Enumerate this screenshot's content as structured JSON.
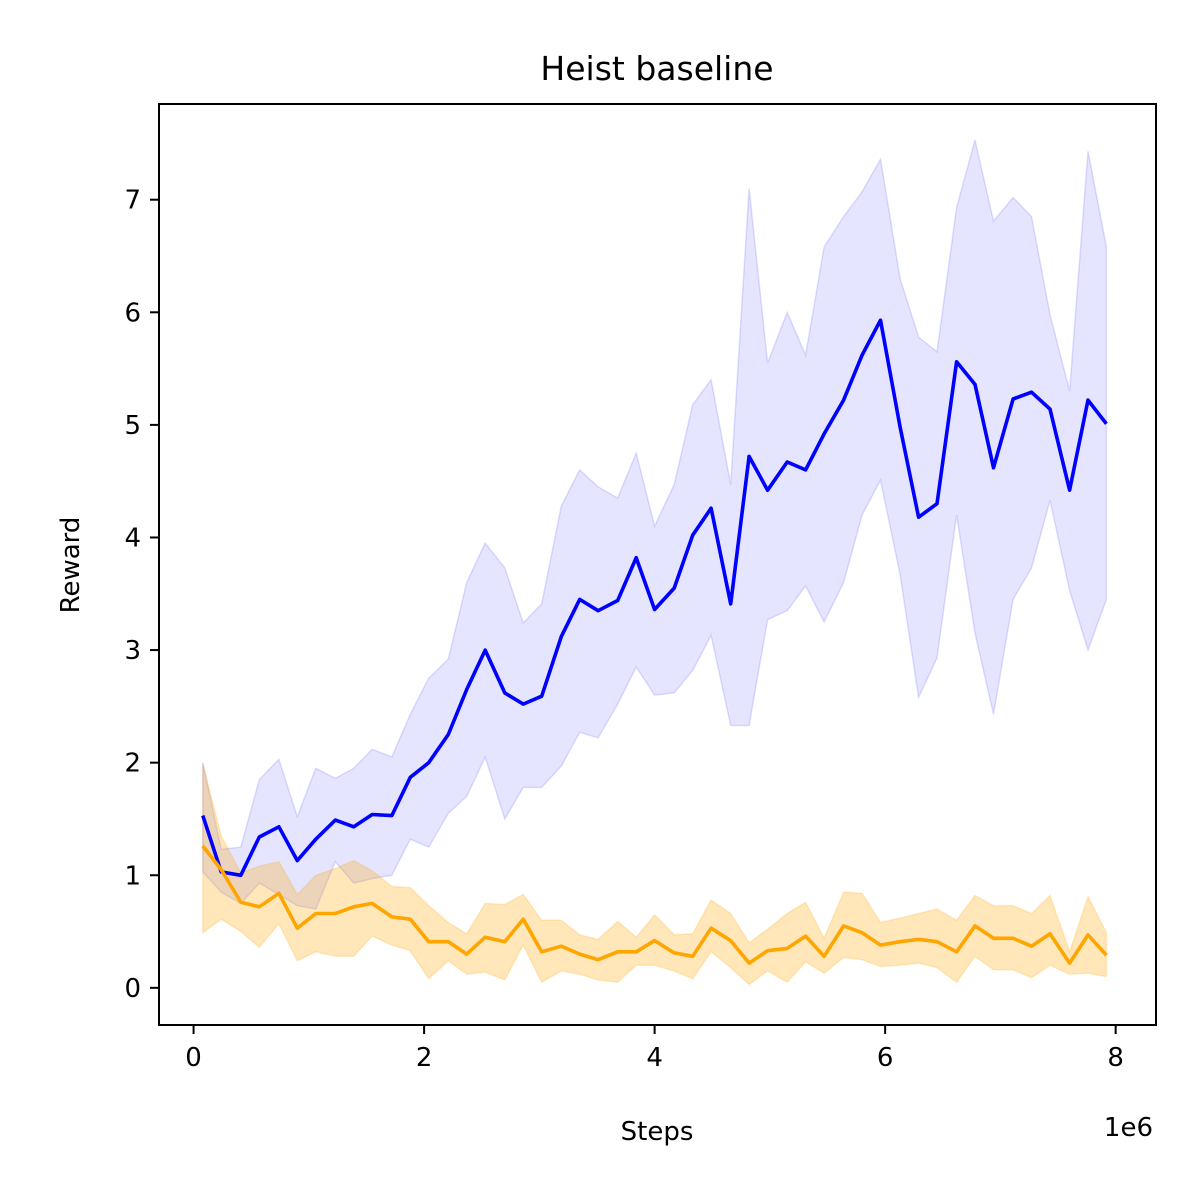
{
  "chart_data": {
    "type": "line",
    "title": "Heist baseline",
    "xlabel": "Steps",
    "ylabel": "Reward",
    "x_offset_label": "1e6",
    "xlim": [
      -0.3,
      8.35
    ],
    "ylim": [
      -0.33,
      7.85
    ],
    "x_ticks": [
      0,
      2,
      4,
      6,
      8
    ],
    "y_ticks": [
      0,
      1,
      2,
      3,
      4,
      5,
      6,
      7
    ],
    "x_tick_unit": 1000000,
    "grid": false,
    "legend": "none",
    "x": [
      0.08,
      0.24,
      0.41,
      0.57,
      0.74,
      0.9,
      1.06,
      1.23,
      1.39,
      1.55,
      1.72,
      1.88,
      2.04,
      2.21,
      2.37,
      2.53,
      2.7,
      2.86,
      3.02,
      3.19,
      3.35,
      3.51,
      3.68,
      3.84,
      4.0,
      4.17,
      4.33,
      4.49,
      4.66,
      4.82,
      4.98,
      5.15,
      5.31,
      5.47,
      5.64,
      5.8,
      5.96,
      6.13,
      6.29,
      6.45,
      6.62,
      6.78,
      6.94,
      7.11,
      7.27,
      7.43,
      7.6,
      7.76,
      7.92
    ],
    "series": [
      {
        "color": "#0000ff",
        "band_color": "#0000ff",
        "values": [
          1.53,
          1.03,
          1.0,
          1.34,
          1.43,
          1.13,
          1.32,
          1.49,
          1.43,
          1.54,
          1.53,
          1.87,
          2.0,
          2.25,
          2.65,
          3.0,
          2.62,
          2.52,
          2.59,
          3.12,
          3.45,
          3.35,
          3.44,
          3.82,
          3.36,
          3.55,
          4.02,
          4.26,
          3.41,
          4.72,
          4.42,
          4.67,
          4.6,
          4.92,
          5.22,
          5.62,
          5.93,
          4.98,
          4.18,
          4.3,
          5.56,
          5.36,
          4.62,
          5.23,
          5.29,
          5.14,
          4.42,
          5.22,
          5.01
        ],
        "lower": [
          1.03,
          0.85,
          0.75,
          0.93,
          0.83,
          0.73,
          0.7,
          1.12,
          0.93,
          0.97,
          1.0,
          1.32,
          1.25,
          1.55,
          1.7,
          2.05,
          1.5,
          1.78,
          1.78,
          1.97,
          2.27,
          2.22,
          2.52,
          2.85,
          2.6,
          2.62,
          2.82,
          3.13,
          2.33,
          2.33,
          3.27,
          3.35,
          3.57,
          3.25,
          3.6,
          4.2,
          4.51,
          3.67,
          2.58,
          2.93,
          4.2,
          3.15,
          2.43,
          3.45,
          3.73,
          4.33,
          3.53,
          3.0,
          3.45
        ],
        "upper": [
          2.0,
          1.23,
          1.25,
          1.85,
          2.03,
          1.52,
          1.95,
          1.86,
          1.95,
          2.12,
          2.05,
          2.43,
          2.75,
          2.92,
          3.6,
          3.95,
          3.73,
          3.24,
          3.41,
          4.28,
          4.6,
          4.45,
          4.35,
          4.75,
          4.1,
          4.47,
          5.18,
          5.4,
          4.47,
          7.1,
          5.55,
          6.0,
          5.62,
          6.58,
          6.85,
          7.07,
          7.36,
          6.3,
          5.78,
          5.65,
          6.93,
          7.53,
          6.81,
          7.02,
          6.85,
          5.98,
          5.3,
          7.43,
          6.58
        ]
      },
      {
        "color": "#ffa500",
        "band_color": "#ffa500",
        "values": [
          1.26,
          1.05,
          0.76,
          0.72,
          0.84,
          0.53,
          0.66,
          0.66,
          0.72,
          0.75,
          0.63,
          0.61,
          0.41,
          0.41,
          0.3,
          0.45,
          0.41,
          0.61,
          0.32,
          0.37,
          0.3,
          0.25,
          0.32,
          0.32,
          0.42,
          0.31,
          0.28,
          0.53,
          0.42,
          0.22,
          0.33,
          0.35,
          0.46,
          0.28,
          0.55,
          0.49,
          0.38,
          0.41,
          0.43,
          0.41,
          0.32,
          0.55,
          0.44,
          0.44,
          0.37,
          0.48,
          0.22,
          0.47,
          0.29
        ],
        "lower": [
          0.49,
          0.61,
          0.5,
          0.36,
          0.57,
          0.24,
          0.32,
          0.28,
          0.28,
          0.46,
          0.38,
          0.33,
          0.08,
          0.24,
          0.12,
          0.14,
          0.07,
          0.38,
          0.05,
          0.15,
          0.12,
          0.07,
          0.05,
          0.2,
          0.2,
          0.15,
          0.08,
          0.32,
          0.18,
          0.03,
          0.15,
          0.05,
          0.23,
          0.13,
          0.27,
          0.25,
          0.19,
          0.2,
          0.22,
          0.18,
          0.05,
          0.28,
          0.16,
          0.16,
          0.09,
          0.2,
          0.12,
          0.13,
          0.1
        ],
        "upper": [
          1.99,
          1.35,
          1.02,
          1.08,
          1.12,
          0.83,
          1.0,
          1.06,
          1.13,
          1.04,
          0.9,
          0.89,
          0.73,
          0.58,
          0.48,
          0.75,
          0.74,
          0.83,
          0.6,
          0.6,
          0.47,
          0.43,
          0.59,
          0.45,
          0.65,
          0.47,
          0.48,
          0.78,
          0.66,
          0.4,
          0.52,
          0.66,
          0.76,
          0.44,
          0.85,
          0.84,
          0.58,
          0.62,
          0.66,
          0.7,
          0.6,
          0.82,
          0.73,
          0.73,
          0.66,
          0.82,
          0.32,
          0.81,
          0.49
        ]
      }
    ]
  }
}
